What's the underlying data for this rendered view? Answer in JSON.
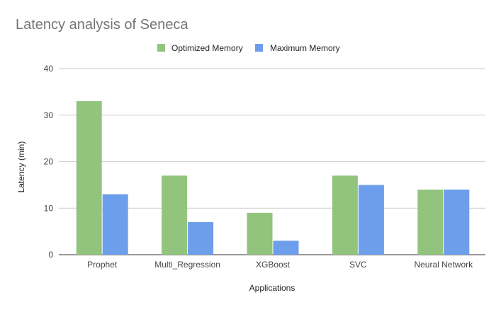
{
  "chart_data": {
    "type": "bar",
    "title": "Latency analysis of Seneca",
    "xlabel": "Applications",
    "ylabel": "Latency (min)",
    "categories": [
      "Prophet",
      "Multi_Regression",
      "XGBoost",
      "SVC",
      "Neural Network"
    ],
    "series": [
      {
        "name": "Optimized Memory",
        "color": "#93c47d",
        "values": [
          33,
          17,
          9,
          17,
          14
        ]
      },
      {
        "name": "Maximum Memory",
        "color": "#6d9eeb",
        "values": [
          13,
          7,
          3,
          15,
          14
        ]
      }
    ],
    "ylim": [
      0,
      40
    ],
    "yticks": [
      0,
      10,
      20,
      30,
      40
    ],
    "grid": true,
    "legend_position": "top"
  }
}
